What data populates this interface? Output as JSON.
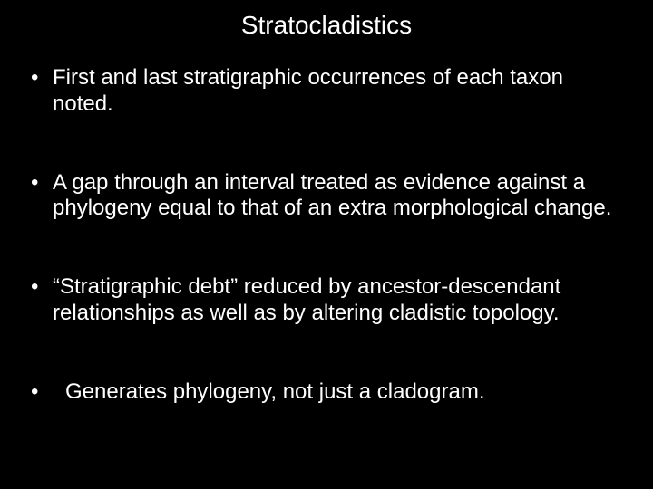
{
  "slide": {
    "title": "Stratocladistics",
    "background_color": "#000000",
    "text_color": "#ffffff",
    "title_fontsize": 28,
    "body_fontsize": 24,
    "bullets": [
      "First and last stratigraphic occurrences of each taxon noted.",
      "A gap through an interval treated as evidence against a phylogeny equal to that of an extra morphological change.",
      "“Stratigraphic debt” reduced by ancestor-descendant relationships as well as by altering cladistic topology.",
      "Generates phylogeny, not just a cladogram."
    ]
  }
}
